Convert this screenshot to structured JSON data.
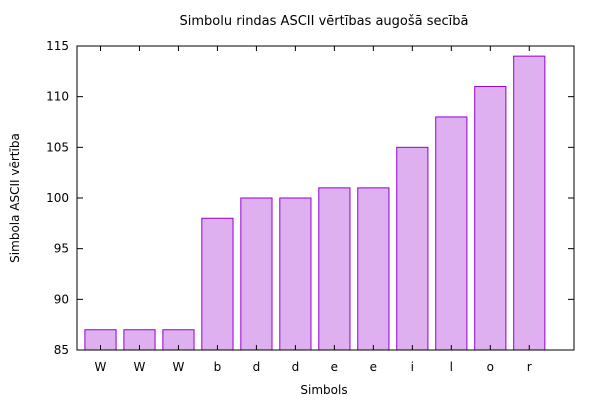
{
  "chart_data": {
    "type": "bar",
    "title": "Simbolu rindas ASCII vērtības augošā secībā",
    "xlabel": "Simbols",
    "ylabel": "Simbola ASCII vērtība",
    "categories": [
      "W",
      "W",
      "W",
      "b",
      "d",
      "d",
      "e",
      "e",
      "i",
      "l",
      "o",
      "r"
    ],
    "values": [
      87,
      87,
      87,
      98,
      100,
      100,
      101,
      101,
      105,
      108,
      111,
      114
    ],
    "ylim": [
      85,
      115
    ],
    "yticks": [
      85,
      90,
      95,
      100,
      105,
      110,
      115
    ],
    "grid": false,
    "legend": "none",
    "colors": {
      "bar_fill": "#dfb0f0",
      "bar_stroke": "#9400d3",
      "axis": "#000000"
    }
  }
}
